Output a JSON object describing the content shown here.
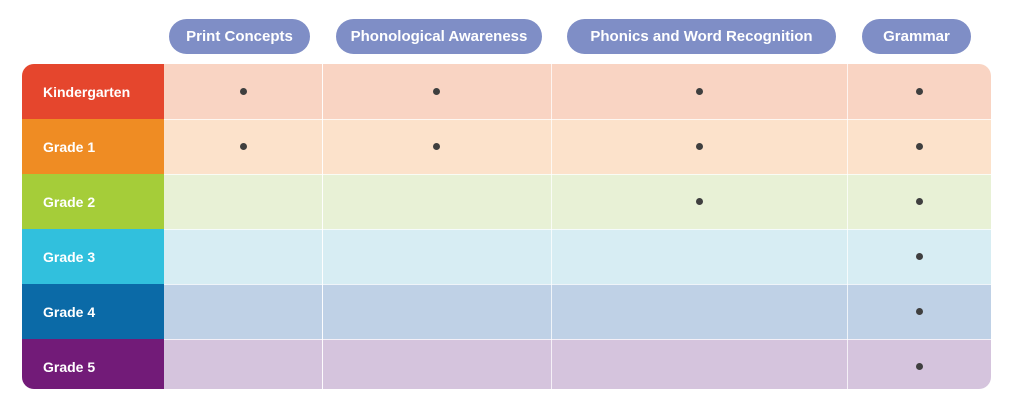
{
  "columns": [
    {
      "label": "Print Concepts"
    },
    {
      "label": "Phonological Awareness"
    },
    {
      "label": "Phonics and Word Recognition"
    },
    {
      "label": "Grammar"
    }
  ],
  "rows": [
    {
      "label": "Kindergarten",
      "label_color": "#e5462d",
      "row_color": "#f9d4c3",
      "dots": [
        true,
        true,
        true,
        true
      ]
    },
    {
      "label": "Grade 1",
      "label_color": "#ef8c23",
      "row_color": "#fce2cb",
      "dots": [
        true,
        true,
        true,
        true
      ]
    },
    {
      "label": "Grade 2",
      "label_color": "#a5cd39",
      "row_color": "#e8f1d6",
      "dots": [
        false,
        false,
        true,
        true
      ]
    },
    {
      "label": "Grade 3",
      "label_color": "#31c0dd",
      "row_color": "#d7edf3",
      "dots": [
        false,
        false,
        false,
        true
      ]
    },
    {
      "label": "Grade 4",
      "label_color": "#0b6aa7",
      "row_color": "#bfd1e6",
      "dots": [
        false,
        false,
        false,
        true
      ]
    },
    {
      "label": "Grade 5",
      "label_color": "#721b78",
      "row_color": "#d5c4dd",
      "dots": [
        false,
        false,
        false,
        true
      ]
    }
  ],
  "colors": {
    "header_pill": "#7f8ec6",
    "dot": "#3f3f3f"
  }
}
